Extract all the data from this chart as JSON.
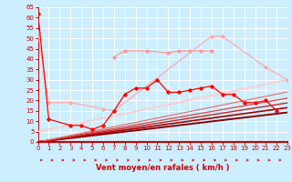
{
  "xlabel": "Vent moyen/en rafales ( km/h )",
  "xlim": [
    0,
    23
  ],
  "ylim": [
    0,
    65
  ],
  "yticks": [
    0,
    5,
    10,
    15,
    20,
    25,
    30,
    35,
    40,
    45,
    50,
    55,
    60,
    65
  ],
  "xticks": [
    0,
    1,
    2,
    3,
    4,
    5,
    6,
    7,
    8,
    9,
    10,
    11,
    12,
    13,
    14,
    15,
    16,
    17,
    18,
    19,
    20,
    21,
    22,
    23
  ],
  "bg_color": "#cceeff",
  "grid_color": "#ffffff",
  "arrow_color": "#cc0000",
  "axis_color": "#cc0000",
  "tick_color": "#cc0000",
  "line1_x": [
    0,
    1,
    3,
    4,
    5,
    6,
    7,
    8,
    9,
    10,
    11,
    12,
    13,
    14,
    15,
    16,
    17,
    18,
    19,
    20,
    21,
    22
  ],
  "line1_y": [
    62,
    11,
    8,
    8,
    6,
    8,
    15,
    23,
    26,
    26,
    30,
    24,
    24,
    25,
    26,
    27,
    23,
    23,
    19,
    19,
    20,
    15
  ],
  "line1_color": "#ff0000",
  "line2_x": [
    0,
    1,
    3,
    6,
    7,
    16,
    17,
    21,
    23
  ],
  "line2_y": [
    53,
    19,
    19,
    16,
    15,
    51,
    51,
    36,
    30
  ],
  "line2_color": "#ffaaaa",
  "line3_x": [
    7,
    8,
    10,
    12,
    13,
    14,
    15,
    16
  ],
  "line3_y": [
    41,
    44,
    44,
    43,
    44,
    44,
    44,
    44
  ],
  "line3_color": "#ff9999",
  "line4_x": [
    0,
    23
  ],
  "line4_y": [
    5,
    30
  ],
  "line4_color": "#ffcccc",
  "diag_lines": [
    {
      "slope": 0.62,
      "color": "#880000",
      "lw": 1.4
    },
    {
      "slope": 0.72,
      "color": "#aa0000",
      "lw": 1.2
    },
    {
      "slope": 0.82,
      "color": "#cc2222",
      "lw": 1.0
    },
    {
      "slope": 0.92,
      "color": "#dd4444",
      "lw": 0.9
    },
    {
      "slope": 1.05,
      "color": "#ee6666",
      "lw": 0.8
    }
  ]
}
